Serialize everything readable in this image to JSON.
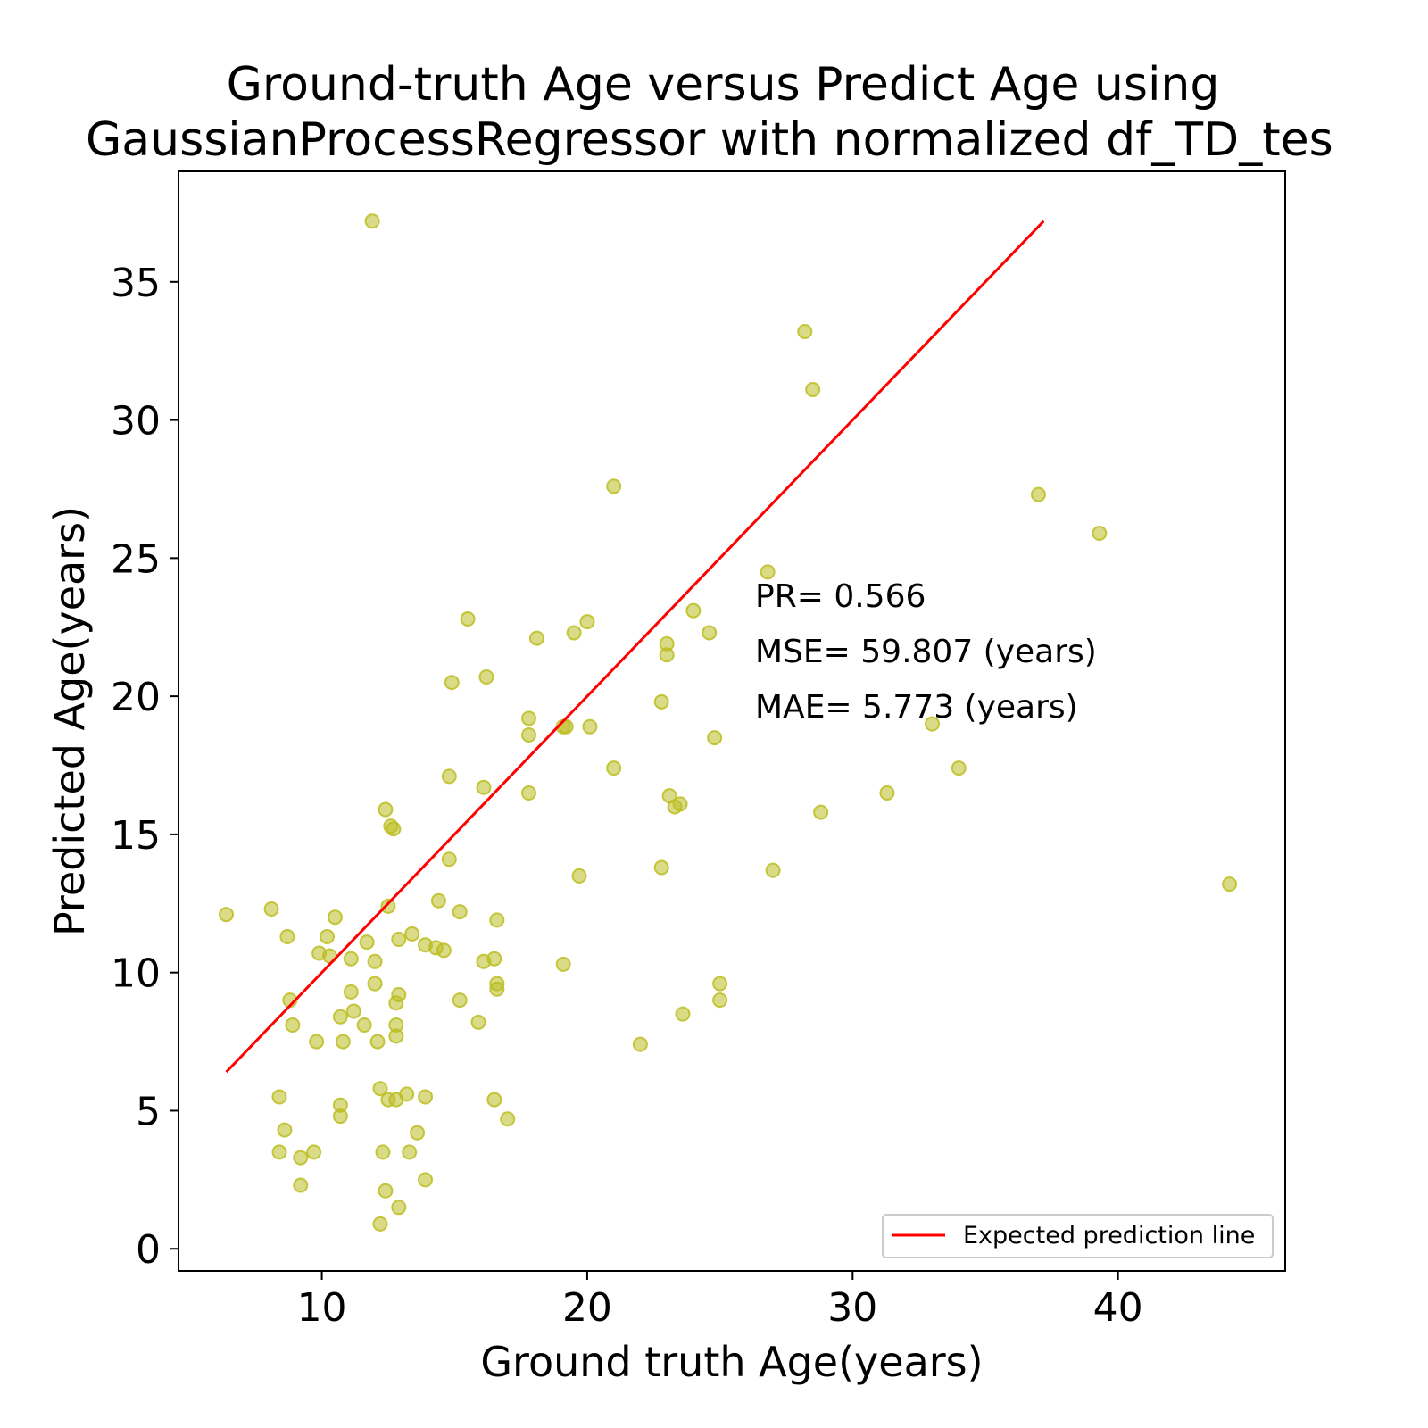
{
  "chart_data": {
    "type": "scatter",
    "title_line1": "Ground-truth Age versus Predict Age using",
    "title_line2": "GaussianProcessRegressor  with normalized df_TD_tes",
    "xlabel": "Ground truth Age(years)",
    "ylabel": "Predicted Age(years)",
    "xlim": [
      4.6,
      46.3
    ],
    "ylim": [
      -0.8,
      39.0
    ],
    "xticks": [
      10,
      20,
      30,
      40
    ],
    "yticks": [
      0,
      5,
      10,
      15,
      20,
      25,
      30,
      35
    ],
    "grid": false,
    "legend": {
      "position": "lower-right",
      "entries": [
        "Expected prediction line"
      ]
    },
    "annotations": [
      "PR= 0.566",
      "MSE= 59.807 (years)",
      "MAE= 5.773 (years)"
    ],
    "colors": {
      "points": "#bcbd22",
      "line": "#ff0000"
    },
    "series": [
      {
        "name": "Expected prediction line",
        "kind": "line",
        "points": [
          [
            6.4,
            6.4
          ],
          [
            37.2,
            37.2
          ]
        ]
      },
      {
        "kind": "scatter",
        "points": [
          [
            11.9,
            37.2
          ],
          [
            28.2,
            33.2
          ],
          [
            28.5,
            31.1
          ],
          [
            21.0,
            27.6
          ],
          [
            37.0,
            27.3
          ],
          [
            39.3,
            25.9
          ],
          [
            26.8,
            24.5
          ],
          [
            24.0,
            23.1
          ],
          [
            15.5,
            22.8
          ],
          [
            20.0,
            22.7
          ],
          [
            19.5,
            22.3
          ],
          [
            24.6,
            22.3
          ],
          [
            18.1,
            22.1
          ],
          [
            23.0,
            21.9
          ],
          [
            23.0,
            21.5
          ],
          [
            16.2,
            20.7
          ],
          [
            14.9,
            20.5
          ],
          [
            22.8,
            19.8
          ],
          [
            17.8,
            19.2
          ],
          [
            19.1,
            18.9
          ],
          [
            19.2,
            18.9
          ],
          [
            20.1,
            18.9
          ],
          [
            33.0,
            19.0
          ],
          [
            17.8,
            18.6
          ],
          [
            24.8,
            18.5
          ],
          [
            21.0,
            17.4
          ],
          [
            34.0,
            17.4
          ],
          [
            14.8,
            17.1
          ],
          [
            16.1,
            16.7
          ],
          [
            17.8,
            16.5
          ],
          [
            31.3,
            16.5
          ],
          [
            23.1,
            16.4
          ],
          [
            23.5,
            16.1
          ],
          [
            23.3,
            16.0
          ],
          [
            12.4,
            15.9
          ],
          [
            28.8,
            15.8
          ],
          [
            12.6,
            15.3
          ],
          [
            12.7,
            15.2
          ],
          [
            14.8,
            14.1
          ],
          [
            27.0,
            13.7
          ],
          [
            22.8,
            13.8
          ],
          [
            19.7,
            13.5
          ],
          [
            44.2,
            13.2
          ],
          [
            6.4,
            12.1
          ],
          [
            8.1,
            12.3
          ],
          [
            12.5,
            12.4
          ],
          [
            14.4,
            12.6
          ],
          [
            15.2,
            12.2
          ],
          [
            10.5,
            12.0
          ],
          [
            16.6,
            11.9
          ],
          [
            13.4,
            11.4
          ],
          [
            8.7,
            11.3
          ],
          [
            10.2,
            11.3
          ],
          [
            12.9,
            11.2
          ],
          [
            11.7,
            11.1
          ],
          [
            13.9,
            11.0
          ],
          [
            14.3,
            10.9
          ],
          [
            14.6,
            10.8
          ],
          [
            9.9,
            10.7
          ],
          [
            10.3,
            10.6
          ],
          [
            11.1,
            10.5
          ],
          [
            12.0,
            10.4
          ],
          [
            16.1,
            10.4
          ],
          [
            16.5,
            10.5
          ],
          [
            19.1,
            10.3
          ],
          [
            12.0,
            9.6
          ],
          [
            16.6,
            9.6
          ],
          [
            25.0,
            9.6
          ],
          [
            16.6,
            9.4
          ],
          [
            11.1,
            9.3
          ],
          [
            12.9,
            9.2
          ],
          [
            8.8,
            9.0
          ],
          [
            12.8,
            8.9
          ],
          [
            15.2,
            9.0
          ],
          [
            25.0,
            9.0
          ],
          [
            11.2,
            8.6
          ],
          [
            10.7,
            8.4
          ],
          [
            23.6,
            8.5
          ],
          [
            8.9,
            8.1
          ],
          [
            11.6,
            8.1
          ],
          [
            12.8,
            8.1
          ],
          [
            15.9,
            8.2
          ],
          [
            12.8,
            7.7
          ],
          [
            9.8,
            7.5
          ],
          [
            10.8,
            7.5
          ],
          [
            12.1,
            7.5
          ],
          [
            22.0,
            7.4
          ],
          [
            12.2,
            5.8
          ],
          [
            13.2,
            5.6
          ],
          [
            8.4,
            5.5
          ],
          [
            12.5,
            5.4
          ],
          [
            12.8,
            5.4
          ],
          [
            13.9,
            5.5
          ],
          [
            16.5,
            5.4
          ],
          [
            10.7,
            5.2
          ],
          [
            10.7,
            4.8
          ],
          [
            17.0,
            4.7
          ],
          [
            8.6,
            4.3
          ],
          [
            13.6,
            4.2
          ],
          [
            8.4,
            3.5
          ],
          [
            9.7,
            3.5
          ],
          [
            12.3,
            3.5
          ],
          [
            13.3,
            3.5
          ],
          [
            9.2,
            3.3
          ],
          [
            9.2,
            2.3
          ],
          [
            13.9,
            2.5
          ],
          [
            12.4,
            2.1
          ],
          [
            12.9,
            1.5
          ],
          [
            12.2,
            0.9
          ]
        ]
      }
    ]
  }
}
